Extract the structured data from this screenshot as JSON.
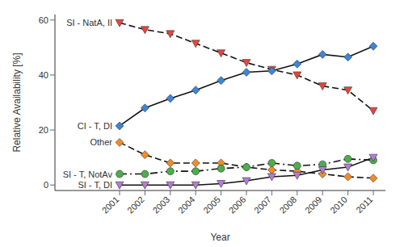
{
  "chart_data": {
    "type": "line",
    "x_label": "Year",
    "y_label": "Relative Availability [%]",
    "categories": [
      "2001",
      "2002",
      "2003",
      "2004",
      "2005",
      "2006",
      "2007",
      "2008",
      "2009",
      "2010",
      "2011"
    ],
    "ylim": [
      -2,
      62
    ],
    "yticks": [
      0,
      20,
      40,
      60
    ],
    "series": [
      {
        "name": "SI - NatA, II",
        "color": "#e8453c",
        "marker": "triangle_down",
        "line_style": "dashed",
        "values": [
          59,
          56.5,
          55,
          51.5,
          48,
          44.5,
          42,
          40,
          36,
          34.5,
          27
        ]
      },
      {
        "name": "CI - T, DI",
        "color": "#3d85d6",
        "marker": "diamond",
        "line_style": "solid",
        "values": [
          21.5,
          28,
          31.5,
          34.5,
          38,
          41,
          41.5,
          44,
          47.5,
          46.5,
          50.5
        ]
      },
      {
        "name": "Other",
        "color": "#f28c28",
        "marker": "diamond",
        "line_style": "dashed",
        "values": [
          15.5,
          11,
          8,
          8,
          8,
          6.5,
          5.5,
          5,
          4,
          3,
          2.5
        ]
      },
      {
        "name": "SI - T, NotAv",
        "color": "#4cae4c",
        "marker": "circle",
        "line_style": "dashdot",
        "values": [
          4,
          4,
          5,
          5,
          6,
          6.5,
          8,
          7,
          7.5,
          9.5,
          9
        ]
      },
      {
        "name": "SI - T, DI",
        "color": "#b57bd8",
        "marker": "triangle_down",
        "line_style": "solid",
        "values": [
          0,
          0,
          0,
          0,
          0.5,
          1.5,
          3,
          3.5,
          5.5,
          6.5,
          10
        ]
      }
    ]
  }
}
